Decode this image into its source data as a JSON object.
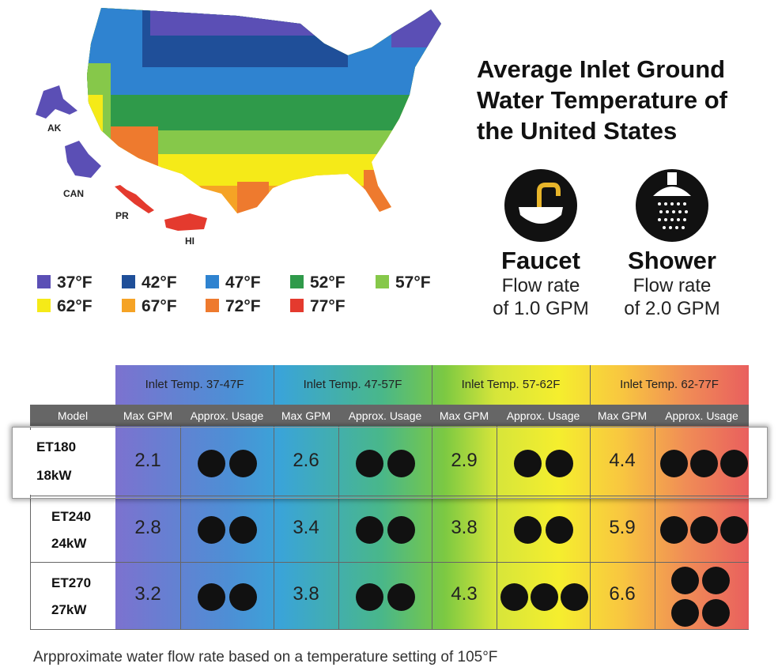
{
  "title": "Average Inlet Ground Water Temperature of the United States",
  "map_labels": {
    "ak": "AK",
    "can": "CAN",
    "pr": "PR",
    "hi": "HI"
  },
  "faucet": {
    "title": "Faucet",
    "line1": "Flow rate",
    "line2": "of 1.0 GPM"
  },
  "shower": {
    "title": "Shower",
    "line1": "Flow rate",
    "line2": "of 2.0 GPM"
  },
  "legend": [
    {
      "label": "37°F",
      "color": "#5b4fb5"
    },
    {
      "label": "42°F",
      "color": "#1f4f99"
    },
    {
      "label": "47°F",
      "color": "#2f83d0"
    },
    {
      "label": "52°F",
      "color": "#2f9a4a"
    },
    {
      "label": "57°F",
      "color": "#86c84a"
    },
    {
      "label": "62°F",
      "color": "#f5ea18"
    },
    {
      "label": "67°F",
      "color": "#f5a325"
    },
    {
      "label": "72°F",
      "color": "#ee7a2e"
    },
    {
      "label": "77°F",
      "color": "#e43a2e"
    }
  ],
  "table": {
    "groups": [
      "Inlet Temp. 37-47F",
      "Inlet Temp. 47-57F",
      "Inlet Temp. 57-62F",
      "Inlet Temp. 62-77F"
    ],
    "model_header": "Model",
    "sub_max": "Max GPM",
    "sub_usage": "Approx. Usage",
    "rows": [
      {
        "model": "ET180",
        "power": "18kW",
        "gpm": [
          "2.1",
          "2.6",
          "2.9",
          "4.4"
        ]
      },
      {
        "model": "ET240",
        "power": "24kW",
        "gpm": [
          "2.8",
          "3.4",
          "3.8",
          "5.9"
        ]
      },
      {
        "model": "ET270",
        "power": "27kW",
        "gpm": [
          "3.2",
          "3.8",
          "4.3",
          "6.6"
        ]
      }
    ]
  },
  "footnote": "Arpproximate water flow rate based on a temperature setting of 105°F"
}
